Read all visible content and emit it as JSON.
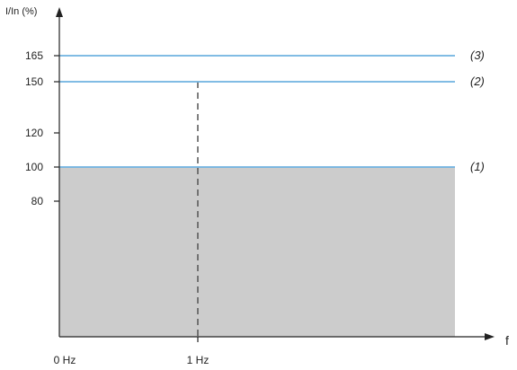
{
  "chart_data": {
    "type": "line",
    "title": "",
    "ylabel": "I/In (%)",
    "xlabel": "f",
    "ylim": [
      0,
      165
    ],
    "y_ticks": [
      {
        "value": 165,
        "label": "165"
      },
      {
        "value": 150,
        "label": "150"
      },
      {
        "value": 120,
        "label": "120"
      },
      {
        "value": 100,
        "label": "100"
      },
      {
        "value": 80,
        "label": "80"
      }
    ],
    "x_ticks": [
      {
        "value": 0,
        "label": "0 Hz"
      },
      {
        "value": 1,
        "label": "1 Hz"
      }
    ],
    "shaded_region": {
      "y_from": 0,
      "y_to": 100,
      "color": "#cccccc"
    },
    "series": [
      {
        "label": "(1)",
        "y": 100,
        "color": "#6fb2e0"
      },
      {
        "label": "(2)",
        "y": 150,
        "color": "#6fb2e0"
      },
      {
        "label": "(3)",
        "y": 165,
        "color": "#6fb2e0"
      }
    ],
    "reference_line": {
      "x": 1,
      "y_from": 0,
      "y_to": 150,
      "style": "dashed",
      "color": "#555555"
    },
    "grid": false,
    "legend": "none"
  }
}
